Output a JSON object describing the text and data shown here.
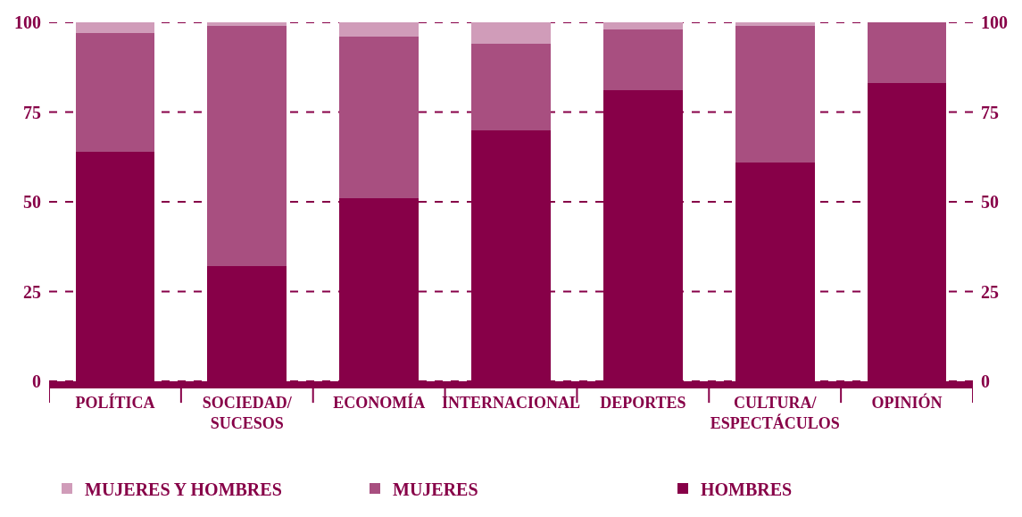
{
  "chart_data": {
    "type": "bar",
    "stacked": true,
    "categories": [
      "POLÍTICA",
      "SOCIEDAD/ SUCESOS",
      "ECONOMÍA",
      "INTERNACIONAL",
      "DEPORTES",
      "CULTURA/ ESPECTÁCULOS",
      "OPINIÓN"
    ],
    "series": [
      {
        "name": "HOMBRES",
        "color": "#870048",
        "values": [
          64,
          32,
          51,
          70,
          81,
          61,
          83
        ]
      },
      {
        "name": "MUJERES",
        "color": "#a84f80",
        "values": [
          33,
          67,
          45,
          24,
          17,
          38,
          17
        ]
      },
      {
        "name": "MUJERES Y HOMBRES",
        "color": "#d09cb9",
        "values": [
          3,
          1,
          4,
          6,
          2,
          1,
          0
        ]
      }
    ],
    "ylim": [
      0,
      100
    ],
    "yticks": [
      0,
      25,
      50,
      75,
      100
    ],
    "y2lim": [
      0,
      100
    ],
    "y2ticks": [
      0,
      25,
      50,
      75,
      100
    ],
    "grid": "y",
    "legend": "bottom"
  }
}
